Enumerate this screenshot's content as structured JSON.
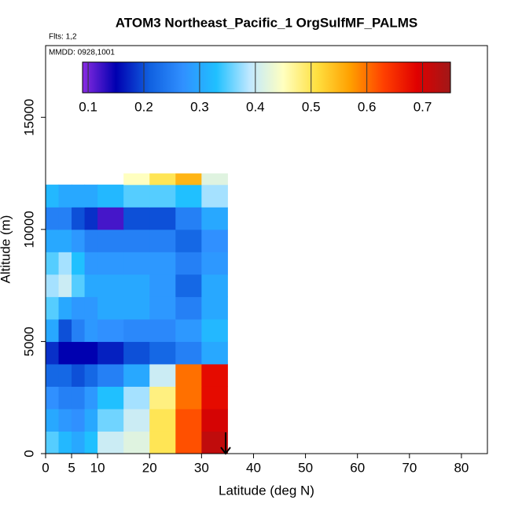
{
  "chart_data": {
    "type": "heatmap",
    "title": "ATOM3 Northeast_Pacific_1 OrgSulfMF_PALMS",
    "subtitle": "Flts: 1,2",
    "annotation": "MMDD: 0928,1001",
    "xlabel": "Latitude (deg N)",
    "ylabel": "Altitude (m)",
    "xlim": [
      0,
      85
    ],
    "ylim": [
      0,
      18200
    ],
    "xticks": [
      0,
      5,
      10,
      20,
      30,
      40,
      50,
      60,
      70,
      80
    ],
    "yticks": [
      0,
      5000,
      10000,
      15000
    ],
    "clim": [
      0.09,
      0.75
    ],
    "cticks": [
      0.1,
      0.2,
      0.3,
      0.4,
      0.5,
      0.6,
      0.7
    ],
    "colormap": [
      "#8a2be2",
      "#0000b0",
      "#1060e0",
      "#3090ff",
      "#20c0ff",
      "#c0e8ff",
      "#ffffc0",
      "#ffe040",
      "#ffa000",
      "#ff4000",
      "#e00000",
      "#a01818"
    ],
    "x_edges": [
      0,
      2.5,
      5,
      7.5,
      10,
      15,
      20,
      25,
      30,
      35
    ],
    "y_edges": [
      0,
      1000,
      2000,
      3000,
      4000,
      5000,
      6000,
      7000,
      8000,
      9000,
      10000,
      11000,
      12000,
      12500
    ],
    "z": [
      [
        0.35,
        0.32,
        0.3,
        0.33,
        0.4,
        0.42,
        0.5,
        0.62,
        0.72
      ],
      [
        0.3,
        0.28,
        0.27,
        0.3,
        0.36,
        0.4,
        0.5,
        0.62,
        0.7
      ],
      [
        0.27,
        0.25,
        0.25,
        0.28,
        0.33,
        0.38,
        0.48,
        0.6,
        0.68
      ],
      [
        0.22,
        0.22,
        0.2,
        0.22,
        0.25,
        0.3,
        0.4,
        0.6,
        0.68
      ],
      [
        0.18,
        0.15,
        0.15,
        0.15,
        0.17,
        0.2,
        0.22,
        0.25,
        0.3
      ],
      [
        0.3,
        0.2,
        0.25,
        0.28,
        0.27,
        0.26,
        0.26,
        0.28,
        0.32
      ],
      [
        0.35,
        0.3,
        0.28,
        0.28,
        0.3,
        0.3,
        0.28,
        0.25,
        0.3
      ],
      [
        0.38,
        0.4,
        0.35,
        0.3,
        0.3,
        0.3,
        0.28,
        0.22,
        0.3
      ],
      [
        0.35,
        0.38,
        0.33,
        0.28,
        0.28,
        0.28,
        0.28,
        0.25,
        0.28
      ],
      [
        0.3,
        0.3,
        0.28,
        0.25,
        0.25,
        0.25,
        0.25,
        0.22,
        0.27
      ],
      [
        0.25,
        0.25,
        0.2,
        0.18,
        0.12,
        0.2,
        0.2,
        0.25,
        0.3
      ],
      [
        0.32,
        0.3,
        0.3,
        0.3,
        0.32,
        0.35,
        0.35,
        0.33,
        0.38
      ],
      [
        null,
        null,
        null,
        null,
        null,
        0.45,
        0.5,
        0.55,
        0.42
      ]
    ]
  }
}
